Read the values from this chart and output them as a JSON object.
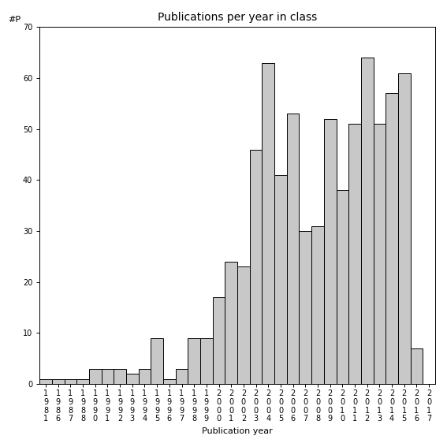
{
  "title": "Publications per year in class",
  "xlabel": "Publication year",
  "ylabel": "#P",
  "ylim": [
    0,
    70
  ],
  "yticks": [
    0,
    10,
    20,
    30,
    40,
    50,
    60,
    70
  ],
  "bar_color": "#c8c8c8",
  "bar_edgecolor": "#000000",
  "categories": [
    "1981",
    "1986",
    "1987",
    "1988",
    "1990",
    "1991",
    "1992",
    "1993",
    "1994",
    "1995",
    "1996",
    "1997",
    "1998",
    "1999",
    "2000",
    "2001",
    "2002",
    "2003",
    "2004",
    "2005",
    "2006",
    "2007",
    "2008",
    "2009",
    "2010",
    "2011",
    "2012",
    "2013",
    "2014",
    "2015",
    "2016",
    "2017"
  ],
  "values": [
    1,
    1,
    1,
    1,
    3,
    3,
    3,
    2,
    3,
    9,
    1,
    3,
    9,
    9,
    17,
    24,
    23,
    46,
    63,
    41,
    53,
    30,
    31,
    52,
    38,
    51,
    64,
    51,
    57,
    61,
    7,
    0
  ],
  "title_fontsize": 10,
  "axis_fontsize": 8,
  "tick_fontsize": 7
}
